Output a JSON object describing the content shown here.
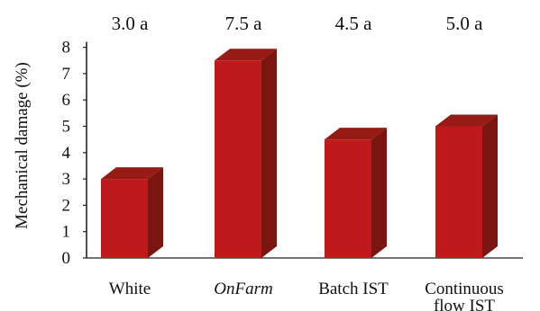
{
  "chart_data": {
    "type": "bar",
    "style": "3d",
    "categories": [
      "White",
      "OnFarm",
      "Batch IST",
      "Continuous\nflow IST"
    ],
    "category_italic": [
      false,
      true,
      false,
      false
    ],
    "values": [
      3.0,
      7.5,
      4.5,
      5.0
    ],
    "data_labels": [
      "3.0 a",
      "7.5 a",
      "4.5 a",
      "5.0 a"
    ],
    "ylabel": "Mechanical damage (%)",
    "xlabel": "",
    "ylim": [
      0,
      8
    ],
    "yticks": [
      0,
      1,
      2,
      3,
      4,
      5,
      6,
      7,
      8
    ],
    "grid": false,
    "legend": "none",
    "colors": {
      "front": "#c0191c",
      "side": "#7a1510",
      "top": "#951b14",
      "axis": "#222222"
    }
  }
}
